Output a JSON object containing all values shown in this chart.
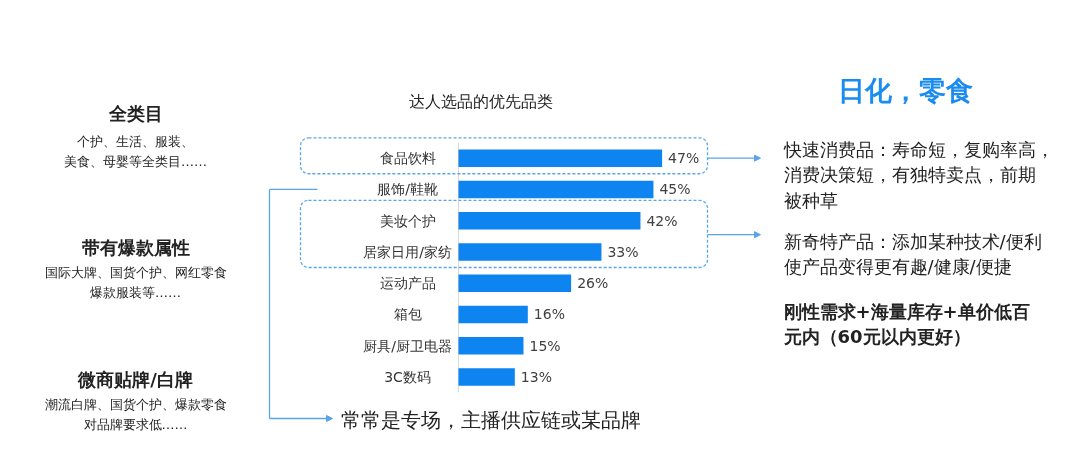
{
  "chart_data": {
    "type": "bar",
    "orientation": "horizontal",
    "title": "达人选品的优先品类",
    "categories": [
      "食品饮料",
      "服饰/鞋靴",
      "美妆个护",
      "居家日用/家纺",
      "运动产品",
      "箱包",
      "厨具/厨卫电器",
      "3C数码"
    ],
    "values": [
      47,
      45,
      42,
      33,
      26,
      16,
      15,
      13
    ],
    "value_labels": [
      "47%",
      "45%",
      "42%",
      "33%",
      "26%",
      "16%",
      "15%",
      "13%"
    ],
    "color": "#0d84ef",
    "annotations": [
      "全类目",
      "个护、生活、服装、美食、母婴等全类目……",
      "带有爆款属性",
      "国际大牌、国货个护、网红零食爆款服装等……",
      "微商贴牌/白牌",
      "潮流白牌、国货个护、爆款零食对品牌要求低……",
      "日化，零食",
      "快速消费品：寿命短，复购率高，消费决策短，有独特卖点，前期被种草",
      "新奇特产品：添加某种技术/便利使产品变得更有趣/健康/便捷",
      "刚性需求+海量库存+单价低百元内（60元以内更好）",
      "常常是专场，主播供应链或某品牌"
    ]
  }
}
